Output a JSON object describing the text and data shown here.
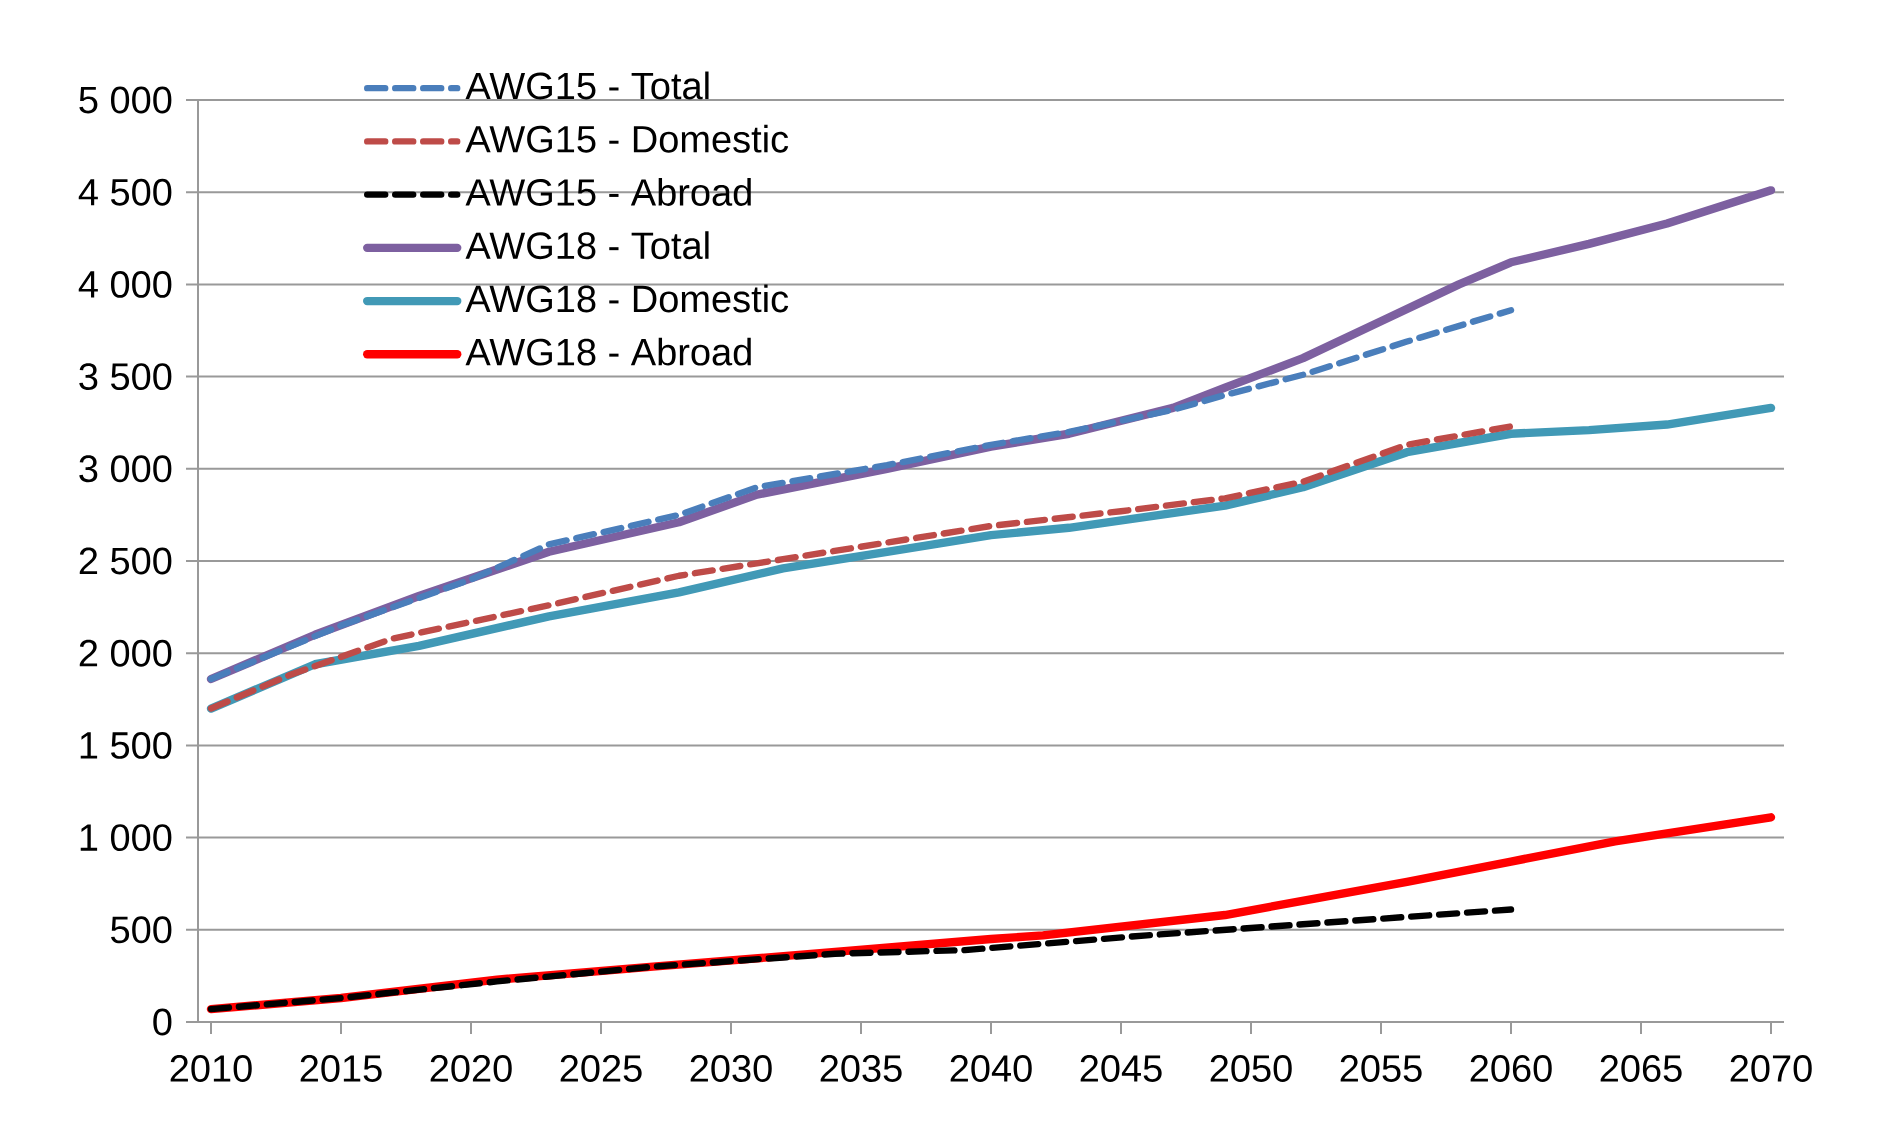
{
  "chart_data": {
    "type": "line",
    "xlim": [
      2009.5,
      2070.5
    ],
    "xticks": [
      2010,
      2015,
      2020,
      2025,
      2030,
      2035,
      2040,
      2045,
      2050,
      2055,
      2060,
      2065,
      2070
    ],
    "ylim": [
      0,
      5000
    ],
    "yticks": [
      0,
      500,
      {
        "value": 1000,
        "label": "1 000"
      },
      {
        "value": 1500,
        "label": "1 500"
      },
      {
        "value": 2000,
        "label": "2 000"
      },
      {
        "value": 2500,
        "label": "2 500"
      },
      {
        "value": 3000,
        "label": "3 000"
      },
      {
        "value": 3500,
        "label": "3 500"
      },
      {
        "value": 4000,
        "label": "4 000"
      },
      {
        "value": 4500,
        "label": "4 500"
      },
      {
        "value": 5000,
        "label": "5 000"
      }
    ],
    "grid": "y",
    "legend": "top left",
    "marker": "none",
    "series": [
      {
        "name": "AWG15 - Total",
        "color": "#4a7ebb",
        "line_style": "dashed",
        "x": [
          2010,
          2015,
          2020,
          2023,
          2028,
          2031,
          2036,
          2040,
          2043,
          2047,
          2049,
          2052,
          2056,
          2060
        ],
        "values": [
          1860,
          2150,
          2400,
          2590,
          2750,
          2900,
          3020,
          3130,
          3200,
          3320,
          3400,
          3510,
          3690,
          3860
        ]
      },
      {
        "name": "AWG15 - Domestic",
        "color": "#be4b48",
        "line_style": "dashed",
        "x": [
          2010,
          2013,
          2017,
          2023,
          2028,
          2032,
          2040,
          2045,
          2049,
          2052,
          2056,
          2060
        ],
        "values": [
          1700,
          1880,
          2080,
          2260,
          2420,
          2510,
          2690,
          2770,
          2840,
          2930,
          3130,
          3230
        ]
      },
      {
        "name": "AWG15 - Abroad",
        "color": "#000000",
        "line_style": "dashed",
        "x": [
          2010,
          2015,
          2021,
          2027,
          2034,
          2039,
          2046,
          2052,
          2060
        ],
        "values": [
          70,
          130,
          220,
          300,
          370,
          390,
          470,
          530,
          610
        ]
      },
      {
        "name": "AWG18 - Total",
        "color": "#7d60a0",
        "line_style": "solid",
        "x": [
          2010,
          2014,
          2018,
          2023,
          2028,
          2031,
          2036,
          2040,
          2043,
          2047,
          2049,
          2052,
          2055,
          2058,
          2060,
          2063,
          2066,
          2070
        ],
        "values": [
          1860,
          2100,
          2310,
          2550,
          2710,
          2860,
          3000,
          3120,
          3190,
          3330,
          3440,
          3600,
          3800,
          4000,
          4120,
          4220,
          4330,
          4510
        ]
      },
      {
        "name": "AWG18 - Domestic",
        "color": "#4199b6",
        "line_style": "solid",
        "x": [
          2010,
          2014,
          2018,
          2023,
          2028,
          2032,
          2036,
          2040,
          2043,
          2049,
          2052,
          2056,
          2060,
          2063,
          2066,
          2070
        ],
        "values": [
          1700,
          1940,
          2040,
          2200,
          2330,
          2460,
          2550,
          2640,
          2680,
          2800,
          2900,
          3090,
          3190,
          3210,
          3240,
          3330
        ]
      },
      {
        "name": "AWG18 - Abroad",
        "color": "#ff0000",
        "line_style": "solid",
        "x": [
          2010,
          2015,
          2021,
          2027,
          2034,
          2040,
          2042,
          2049,
          2056,
          2060,
          2064,
          2070
        ],
        "values": [
          70,
          130,
          230,
          300,
          380,
          450,
          470,
          580,
          760,
          870,
          980,
          1110
        ]
      }
    ]
  }
}
